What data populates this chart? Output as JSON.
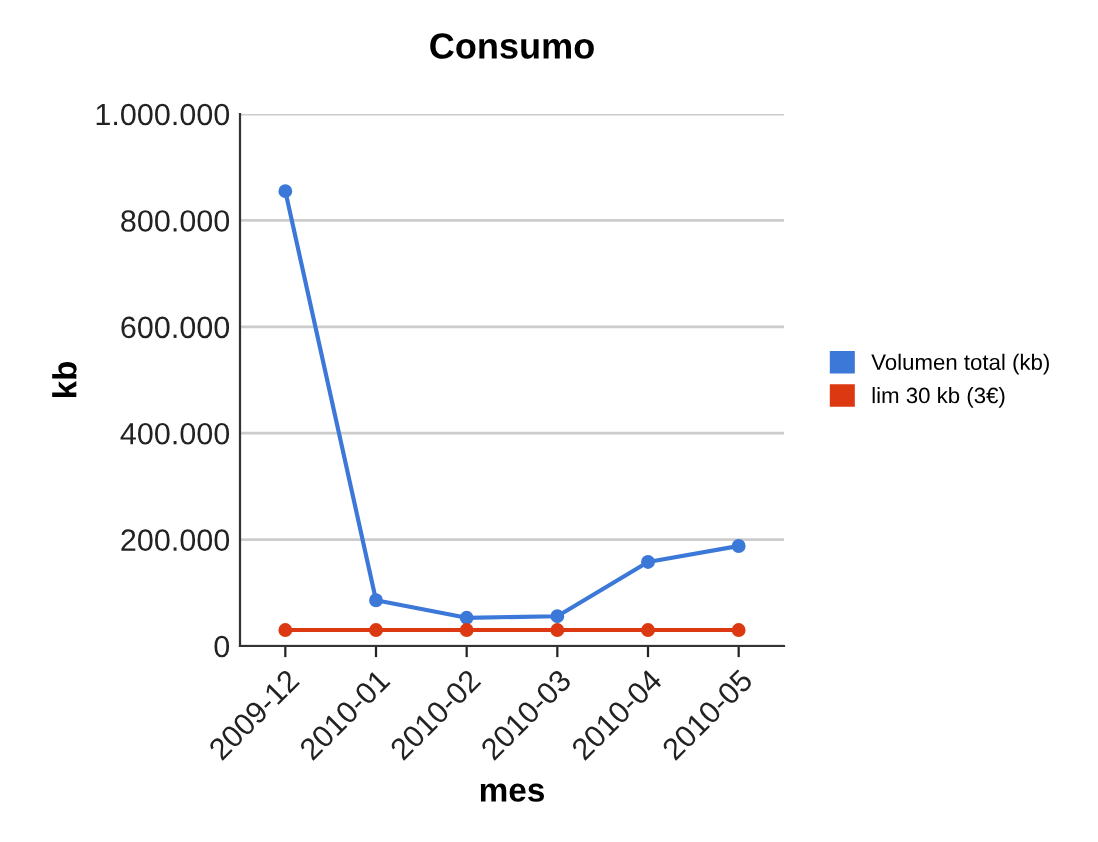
{
  "chart_data": {
    "type": "line",
    "title": "Consumo",
    "xlabel": "mes",
    "ylabel": "kb",
    "categories": [
      "2009-12",
      "2010-01",
      "2010-02",
      "2010-03",
      "2010-04",
      "2010-05"
    ],
    "series": [
      {
        "name": "Volumen total (kb)",
        "color": "#3c78d8",
        "values": [
          855000,
          86000,
          53000,
          56000,
          158000,
          188000
        ]
      },
      {
        "name": "lim 30 kb (3€)",
        "color": "#dc3912",
        "values": [
          30000,
          30000,
          30000,
          30000,
          30000,
          30000
        ]
      }
    ],
    "ylim": [
      0,
      1000000
    ],
    "yticks": [
      {
        "value": 0,
        "label": "0"
      },
      {
        "value": 200000,
        "label": "200.000"
      },
      {
        "value": 400000,
        "label": "400.000"
      },
      {
        "value": 600000,
        "label": "600.000"
      },
      {
        "value": 800000,
        "label": "800.000"
      },
      {
        "value": 1000000,
        "label": "1.000.000"
      }
    ],
    "grid": "y",
    "legend": "right",
    "marker": "circle",
    "line_style": "solid"
  }
}
